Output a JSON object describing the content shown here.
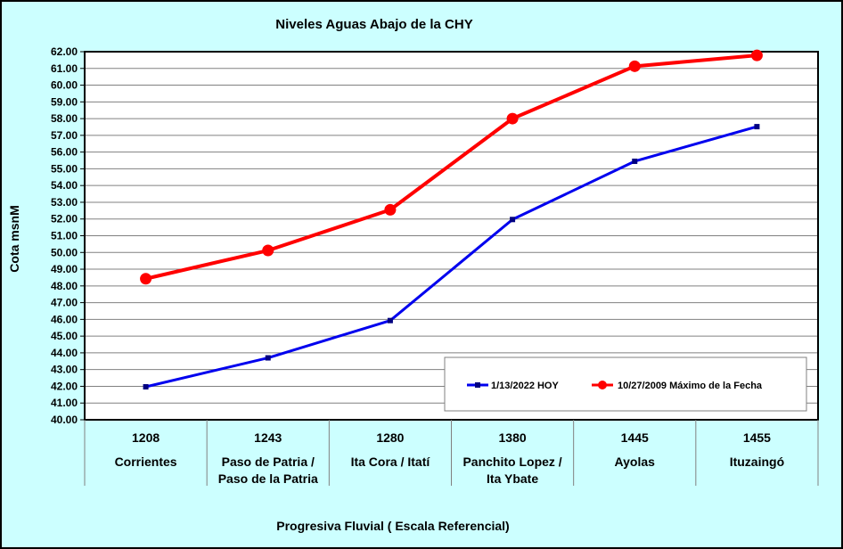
{
  "chart_data": {
    "type": "line",
    "title": "Niveles Aguas Abajo de la CHY",
    "ylabel": "Cota msnM",
    "xlabel": "Progresiva Fluvial ( Escala Referencial)",
    "ylim": [
      40,
      62
    ],
    "y_ticks": [
      "40.00",
      "41.00",
      "42.00",
      "43.00",
      "44.00",
      "45.00",
      "46.00",
      "47.00",
      "48.00",
      "49.00",
      "50.00",
      "51.00",
      "52.00",
      "53.00",
      "54.00",
      "55.00",
      "56.00",
      "57.00",
      "58.00",
      "59.00",
      "60.00",
      "61.00",
      "62.00"
    ],
    "categories": [
      {
        "code": "1208",
        "name": [
          "Corrientes"
        ]
      },
      {
        "code": "1243",
        "name": [
          "Paso de Patria /",
          "Paso de la Patria"
        ]
      },
      {
        "code": "1280",
        "name": [
          "Ita Cora / Itatí"
        ]
      },
      {
        "code": "1380",
        "name": [
          "Panchito Lopez /",
          "Ita Ybate"
        ]
      },
      {
        "code": "1445",
        "name": [
          "Ayolas"
        ]
      },
      {
        "code": "1455",
        "name": [
          "Ituzaingó"
        ]
      }
    ],
    "series": [
      {
        "name": "1/13/2022 HOY",
        "color": "#0000ee",
        "marker": "square",
        "values": [
          41.97,
          43.7,
          45.93,
          51.97,
          55.45,
          57.52
        ]
      },
      {
        "name": "10/27/2009 Máximo de la Fecha",
        "color": "#ff0000",
        "marker": "circle",
        "values": [
          48.43,
          50.12,
          52.55,
          58.0,
          61.13,
          61.78
        ]
      }
    ],
    "grid": true,
    "legend": "bottom-right"
  }
}
